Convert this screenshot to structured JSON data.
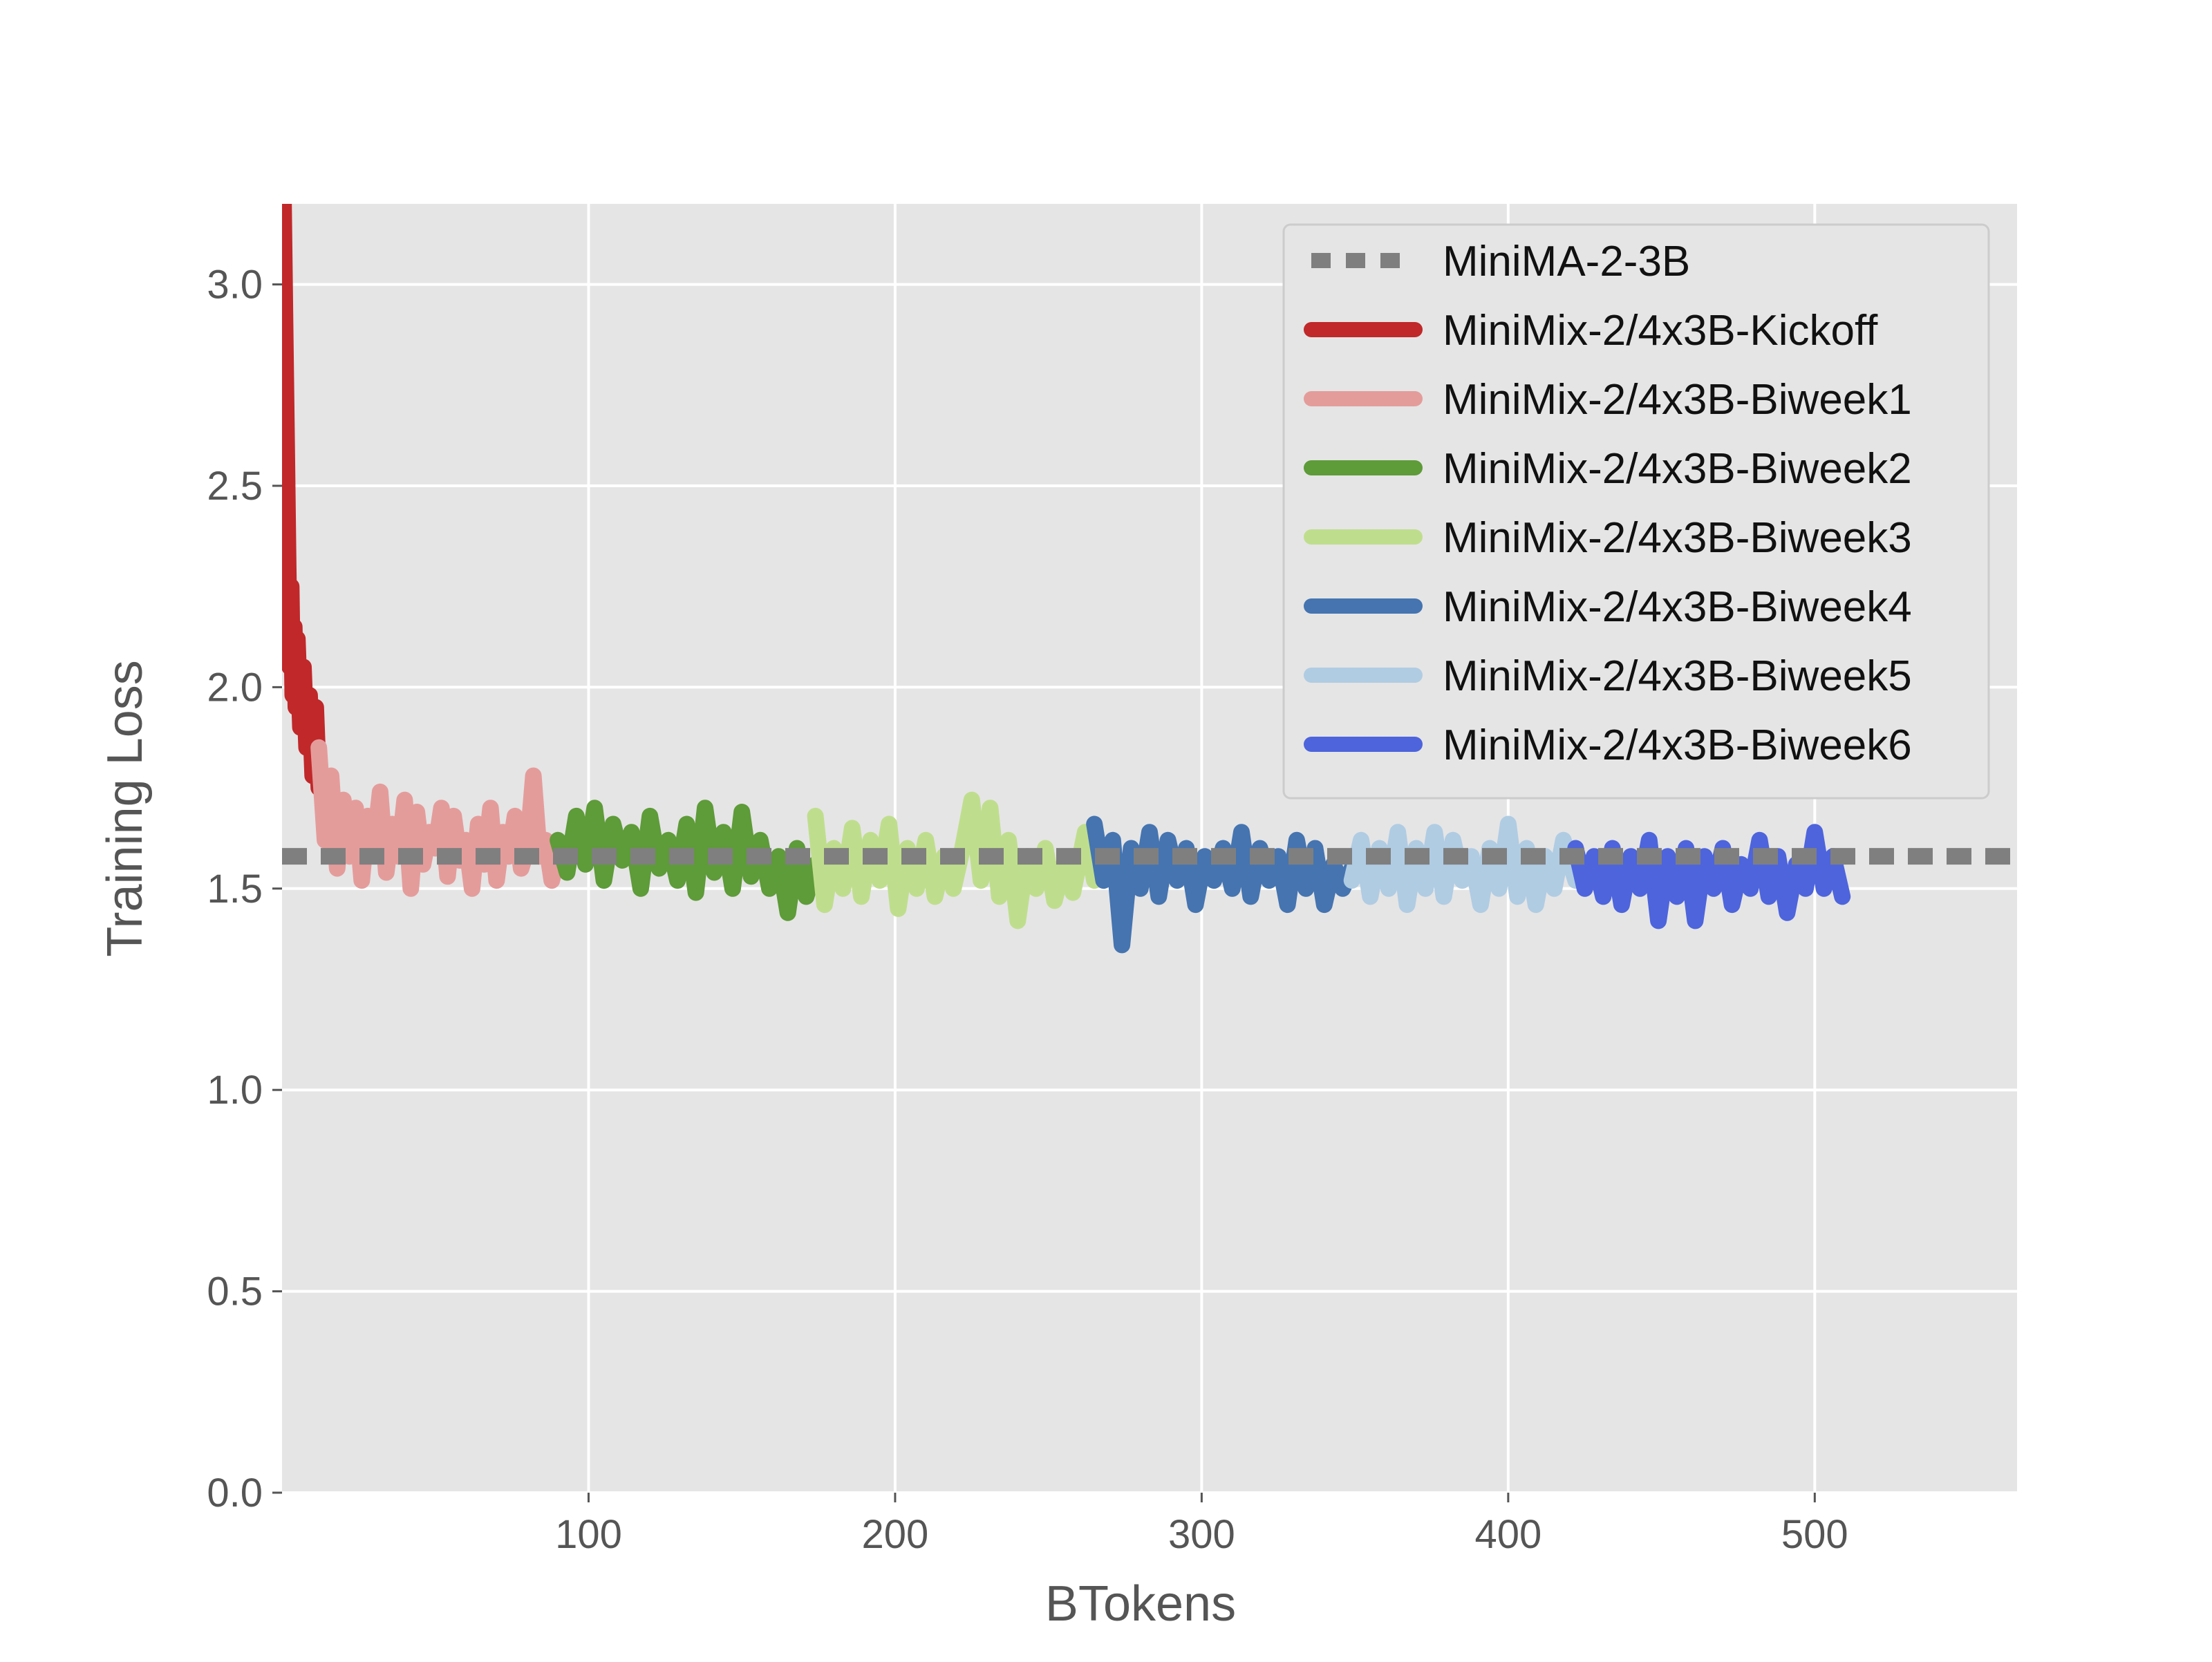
{
  "chart_data": {
    "type": "line",
    "xlabel": "BTokens",
    "ylabel": "Training Loss",
    "xlim": [
      0,
      566
    ],
    "ylim": [
      0,
      3.2
    ],
    "x_ticks": [
      100,
      200,
      300,
      400,
      500
    ],
    "x_tick_labels": [
      "100",
      "200",
      "300",
      "400",
      "500"
    ],
    "y_ticks": [
      0.0,
      0.5,
      1.0,
      1.5,
      2.0,
      2.5,
      3.0
    ],
    "y_tick_labels": [
      "0.0",
      "0.5",
      "1.0",
      "1.5",
      "2.0",
      "2.5",
      "3.0"
    ],
    "grid": true,
    "legend_position": "top-right",
    "reference_line": {
      "name": "MiniMA-2-3B",
      "y": 1.58,
      "color": "#7f7f7f",
      "style": "dashed"
    },
    "series": [
      {
        "name": "MiniMix-2/4x3B-Kickoff",
        "color": "#c0282a",
        "x": [
          0.5,
          1.0,
          1.5,
          2.0,
          2.5,
          3.0,
          3.5,
          4.0,
          4.5,
          5.0,
          6.0,
          7.0,
          8.0,
          9.0,
          10.0,
          11.0,
          12.0
        ],
        "y": [
          3.2,
          2.9,
          2.6,
          2.3,
          2.05,
          2.25,
          1.98,
          2.15,
          1.95,
          2.12,
          1.9,
          2.05,
          1.85,
          1.98,
          1.78,
          1.95,
          1.75
        ]
      },
      {
        "name": "MiniMix-2/4x3B-Biweek1",
        "color": "#e49c9b",
        "x": [
          12,
          14,
          16,
          18,
          20,
          22,
          24,
          26,
          28,
          30,
          32,
          34,
          36,
          38,
          40,
          42,
          44,
          46,
          48,
          50,
          52,
          54,
          56,
          58,
          60,
          62,
          64,
          66,
          68,
          70,
          72,
          74,
          76,
          78,
          80,
          82,
          84,
          86,
          88,
          90
        ],
        "y": [
          1.85,
          1.62,
          1.78,
          1.55,
          1.72,
          1.58,
          1.7,
          1.52,
          1.68,
          1.6,
          1.74,
          1.54,
          1.66,
          1.58,
          1.72,
          1.5,
          1.69,
          1.56,
          1.64,
          1.6,
          1.7,
          1.53,
          1.68,
          1.57,
          1.62,
          1.5,
          1.66,
          1.56,
          1.7,
          1.52,
          1.64,
          1.58,
          1.68,
          1.55,
          1.6,
          1.78,
          1.58,
          1.62,
          1.52,
          1.58
        ]
      },
      {
        "name": "MiniMix-2/4x3B-Biweek2",
        "color": "#5e9b39",
        "x": [
          90,
          93,
          96,
          99,
          102,
          105,
          108,
          111,
          114,
          117,
          120,
          123,
          126,
          129,
          132,
          135,
          138,
          141,
          144,
          147,
          150,
          153,
          156,
          159,
          162,
          165,
          168,
          171,
          174
        ],
        "y": [
          1.62,
          1.54,
          1.68,
          1.56,
          1.7,
          1.52,
          1.66,
          1.57,
          1.64,
          1.5,
          1.68,
          1.55,
          1.62,
          1.52,
          1.66,
          1.49,
          1.7,
          1.54,
          1.64,
          1.5,
          1.69,
          1.53,
          1.62,
          1.5,
          1.58,
          1.44,
          1.6,
          1.48,
          1.56
        ]
      },
      {
        "name": "MiniMix-2/4x3B-Biweek3",
        "color": "#bfde8d",
        "x": [
          174,
          177,
          180,
          183,
          186,
          189,
          192,
          195,
          198,
          201,
          204,
          207,
          210,
          213,
          216,
          219,
          222,
          225,
          228,
          231,
          234,
          237,
          240,
          243,
          246,
          249,
          252,
          255,
          258,
          262,
          265
        ],
        "y": [
          1.68,
          1.46,
          1.6,
          1.5,
          1.65,
          1.48,
          1.62,
          1.52,
          1.66,
          1.45,
          1.6,
          1.5,
          1.62,
          1.48,
          1.58,
          1.5,
          1.6,
          1.72,
          1.52,
          1.7,
          1.48,
          1.62,
          1.42,
          1.58,
          1.5,
          1.6,
          1.47,
          1.56,
          1.49,
          1.64,
          1.52
        ]
      },
      {
        "name": "MiniMix-2/4x3B-Biweek4",
        "color": "#4574b0",
        "x": [
          265,
          268,
          271,
          274,
          277,
          280,
          283,
          286,
          289,
          292,
          295,
          298,
          301,
          304,
          307,
          310,
          313,
          316,
          319,
          322,
          325,
          328,
          331,
          334,
          337,
          340,
          343,
          346,
          349
        ],
        "y": [
          1.66,
          1.52,
          1.62,
          1.36,
          1.6,
          1.5,
          1.64,
          1.48,
          1.62,
          1.52,
          1.6,
          1.46,
          1.58,
          1.52,
          1.6,
          1.5,
          1.64,
          1.48,
          1.6,
          1.52,
          1.58,
          1.46,
          1.62,
          1.5,
          1.6,
          1.46,
          1.56,
          1.5,
          1.55
        ]
      },
      {
        "name": "MiniMix-2/4x3B-Biweek5",
        "color": "#b0cce3",
        "x": [
          349,
          352,
          355,
          358,
          361,
          364,
          367,
          370,
          373,
          376,
          379,
          382,
          385,
          388,
          391,
          394,
          397,
          400,
          403,
          406,
          409,
          412,
          415,
          418,
          422
        ],
        "y": [
          1.52,
          1.62,
          1.48,
          1.6,
          1.5,
          1.64,
          1.46,
          1.6,
          1.5,
          1.64,
          1.48,
          1.62,
          1.52,
          1.58,
          1.46,
          1.6,
          1.5,
          1.66,
          1.48,
          1.6,
          1.46,
          1.58,
          1.5,
          1.62,
          1.52
        ]
      },
      {
        "name": "MiniMix-2/4x3B-Biweek6",
        "color": "#4d64dc",
        "x": [
          422,
          425,
          428,
          431,
          434,
          437,
          440,
          443,
          446,
          449,
          452,
          455,
          458,
          461,
          464,
          467,
          470,
          473,
          476,
          479,
          482,
          485,
          488,
          491,
          494,
          497,
          500,
          503,
          506,
          509
        ],
        "y": [
          1.6,
          1.5,
          1.58,
          1.48,
          1.6,
          1.46,
          1.58,
          1.5,
          1.62,
          1.42,
          1.58,
          1.48,
          1.6,
          1.42,
          1.58,
          1.5,
          1.6,
          1.46,
          1.56,
          1.5,
          1.62,
          1.48,
          1.58,
          1.44,
          1.56,
          1.5,
          1.64,
          1.5,
          1.58,
          1.48
        ]
      }
    ]
  }
}
